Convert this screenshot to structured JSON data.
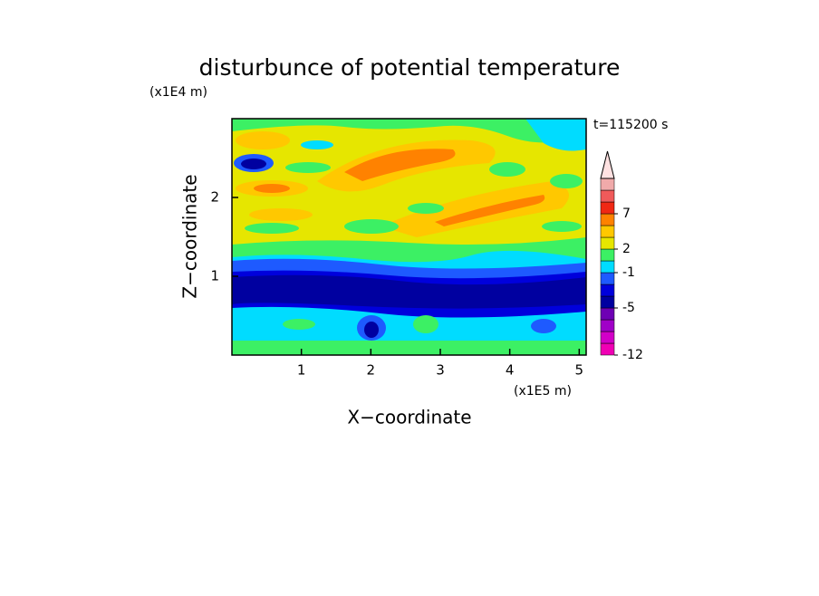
{
  "chart_data": {
    "type": "contour",
    "title": "disturbunce of potential temperature",
    "x_label": "X−coordinate",
    "y_label": "Z−coordinate",
    "x_unit": "(x1E5 m)",
    "y_unit": "(x1E4 m)",
    "annotation": "t=115200 s",
    "xlim": [
      0,
      5.1
    ],
    "xticks": [
      1,
      2,
      3,
      4,
      5
    ],
    "ylim": [
      0,
      3
    ],
    "yticks": [
      1,
      2
    ],
    "colorbar": {
      "levels": [
        -12,
        -10,
        -8,
        -6,
        -5,
        -4,
        -2,
        -1,
        1,
        2,
        3,
        5,
        7,
        9,
        11,
        13
      ],
      "colors": [
        "#f000b4",
        "#d200c8",
        "#a000c8",
        "#6e00b4",
        "#0000a0",
        "#0000dc",
        "#1e5aff",
        "#00dcff",
        "#3cf064",
        "#e6e600",
        "#ffc800",
        "#ff8200",
        "#f02814",
        "#f05a5a",
        "#f0aaaa"
      ],
      "extend_color": "#ffe1e1",
      "ticks": [
        -12,
        -5,
        -1,
        2,
        7
      ]
    }
  }
}
